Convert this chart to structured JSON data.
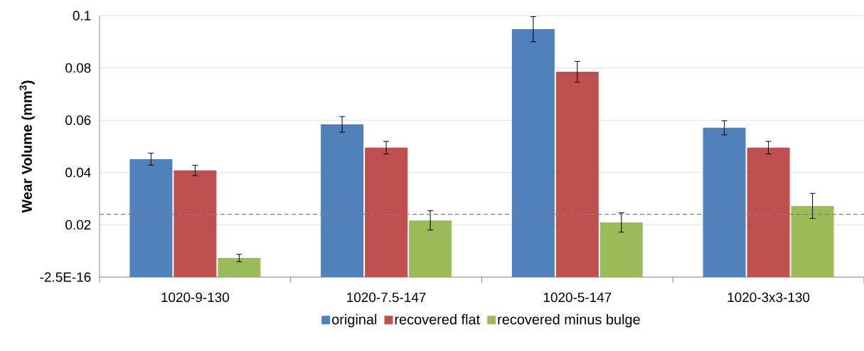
{
  "chart_data": {
    "type": "bar",
    "ylabel": "Wear Volume (mm$^{3}$)",
    "categories": [
      "1020-9-130",
      "1020-7.5-147",
      "1020-5-147",
      "1020-3x3-130"
    ],
    "series": [
      {
        "name": "original",
        "color": "#4f81bd",
        "values": [
          0.0451,
          0.0584,
          0.0948,
          0.0571
        ],
        "errors": [
          0.0023,
          0.003,
          0.0048,
          0.0027
        ]
      },
      {
        "name": "recovered flat",
        "color": "#c0504d",
        "values": [
          0.0408,
          0.0495,
          0.0785,
          0.0495
        ],
        "errors": [
          0.002,
          0.0024,
          0.004,
          0.0024
        ]
      },
      {
        "name": "recovered minus bulge",
        "color": "#9bbb59",
        "values": [
          0.0073,
          0.0217,
          0.0209,
          0.0272
        ],
        "errors": [
          0.0014,
          0.0037,
          0.0037,
          0.0048
        ]
      }
    ],
    "ylim": [
      0,
      0.1
    ],
    "yticks": [
      {
        "value": 0,
        "label": "-2.5E-16"
      },
      0.02,
      0.04,
      0.06,
      0.08,
      0.1
    ],
    "ref_lines": [
      {
        "axis": "y",
        "value": 0.024,
        "color": "#7f7f7f",
        "line_style": "dashed"
      }
    ],
    "grid": "y",
    "legend": "bottom"
  }
}
